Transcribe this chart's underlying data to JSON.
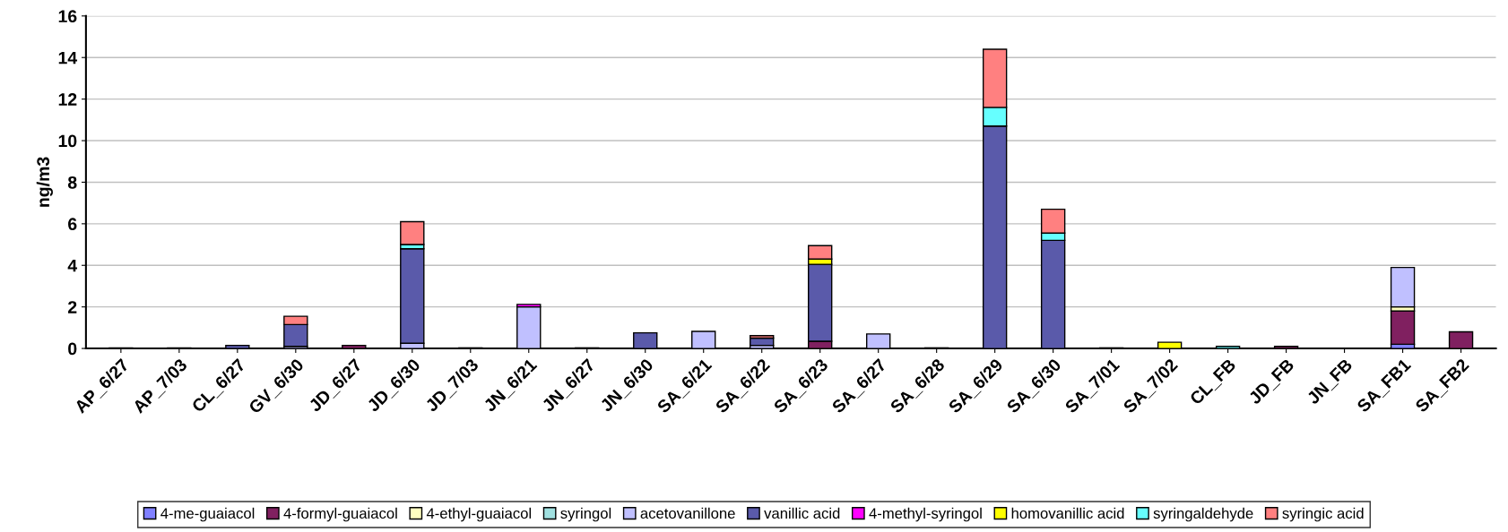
{
  "chart_data": {
    "type": "bar",
    "stacked": true,
    "ylabel": "ng/m3",
    "categories": [
      "AP_6/27",
      "AP_7/03",
      "CL_6/27",
      "GV_6/30",
      "JD_6/27",
      "JD_6/30",
      "JD_7/03",
      "JN_6/21",
      "JN_6/27",
      "JN_6/30",
      "SA_6/21",
      "SA_6/22",
      "SA_6/23",
      "SA_6/27",
      "SA_6/28",
      "SA_6/29",
      "SA_6/30",
      "SA_7/01",
      "SA_7/02",
      "CL_FB",
      "JD_FB",
      "JN_FB",
      "SA_FB1",
      "SA_FB2"
    ],
    "series": [
      {
        "name": "4-me-guaiacol",
        "color": "#8080ff",
        "values": [
          0,
          0,
          0,
          0,
          0,
          0,
          0,
          0,
          0,
          0,
          0,
          0,
          0,
          0,
          0,
          0,
          0,
          0,
          0,
          0,
          0,
          0,
          0.2,
          0
        ]
      },
      {
        "name": "4-formyl-guaiacol",
        "color": "#802060",
        "values": [
          0.03,
          0.03,
          null,
          0,
          0.15,
          0,
          0.03,
          0,
          0.03,
          0,
          0,
          0,
          0.35,
          0,
          0.03,
          0,
          0,
          0.03,
          0,
          0,
          0.1,
          0,
          1.6,
          0.8
        ]
      },
      {
        "name": "4-ethyl-guaiacol",
        "color": "#ffffc0",
        "values": [
          0,
          0,
          0,
          0,
          0,
          0,
          0,
          0,
          0,
          0,
          0,
          0,
          0,
          0,
          0,
          0,
          0,
          0,
          0,
          0,
          0,
          0,
          0.2,
          0
        ]
      },
      {
        "name": "syringol",
        "color": "#a0e0e0",
        "values": [
          0,
          0,
          0,
          0,
          0,
          0,
          0,
          0,
          0,
          0,
          0,
          0,
          0,
          null,
          0,
          0,
          0,
          0,
          0,
          0,
          0,
          0,
          0,
          0
        ]
      },
      {
        "name": "acetovanillone",
        "color": "#c0c0ff",
        "values": [
          0,
          0,
          0,
          0.1,
          0,
          0.25,
          0,
          2.0,
          0,
          0,
          0.82,
          0.15,
          0,
          0.7,
          0,
          0,
          0,
          0,
          0,
          0,
          0,
          0,
          1.9,
          0
        ]
      },
      {
        "name": "vanillic acid",
        "color": "#5a5aaa",
        "values": [
          0,
          0,
          0.15,
          1.05,
          0,
          4.55,
          0,
          0,
          0,
          0.75,
          0,
          0.35,
          3.7,
          0,
          0,
          10.7,
          5.2,
          0,
          0,
          0,
          0,
          0,
          0,
          0
        ]
      },
      {
        "name": "4-methyl-syringol",
        "color": "#ff00ff",
        "values": [
          0,
          0,
          0,
          0,
          0,
          0,
          0,
          0.12,
          0,
          0,
          0,
          0,
          0,
          0,
          0,
          0,
          0,
          0,
          0,
          0,
          0,
          0,
          0,
          0
        ]
      },
      {
        "name": "homovanillic acid",
        "color": "#ffff00",
        "values": [
          0,
          0,
          0,
          0,
          0,
          0,
          0,
          0,
          0,
          0,
          0,
          0,
          0.25,
          0,
          0,
          0,
          0,
          0,
          0.3,
          0,
          0,
          0,
          0,
          0
        ]
      },
      {
        "name": "syringaldehyde",
        "color": "#66ffff",
        "values": [
          0,
          0,
          0,
          0,
          0,
          0.2,
          0,
          0,
          0,
          0,
          0,
          0,
          0,
          0,
          0,
          0.9,
          0.35,
          0,
          0,
          0.1,
          0,
          0,
          0,
          0
        ]
      },
      {
        "name": "syringic acid",
        "color": "#ff8080",
        "values": [
          0,
          0,
          0,
          0.4,
          0,
          1.1,
          0,
          0,
          0,
          0,
          0,
          0.12,
          0.65,
          0,
          0,
          2.8,
          1.15,
          0,
          0,
          0,
          0,
          0,
          0,
          0
        ]
      }
    ],
    "ylim": [
      0,
      16
    ],
    "yticks": [
      0,
      2,
      4,
      6,
      8,
      10,
      12,
      14,
      16
    ],
    "grid": "y",
    "legend": "bottom"
  }
}
